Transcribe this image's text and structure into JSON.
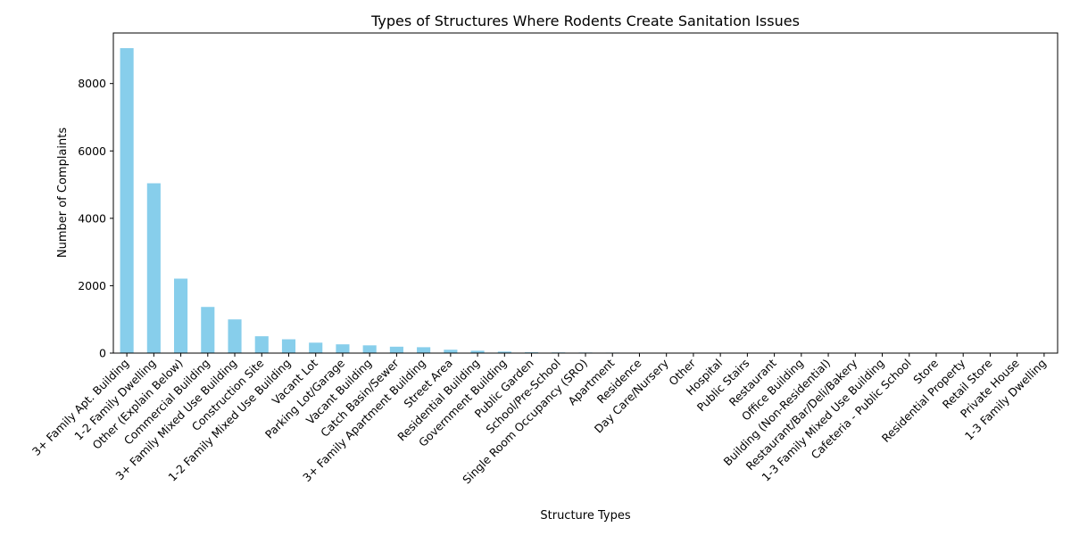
{
  "chart_data": {
    "type": "bar",
    "title": "Types of Structures Where Rodents Create Sanitation Issues",
    "xlabel": "Structure Types",
    "ylabel": "Number of Complaints",
    "ylim": [
      0,
      9500
    ],
    "yticks": [
      0,
      2000,
      4000,
      6000,
      8000
    ],
    "grid": false,
    "bar_color": "#87ceeb",
    "categories": [
      "3+ Family Apt. Building",
      "1-2 Family Dwelling",
      "Other (Explain Below)",
      "Commercial Building",
      "3+ Family Mixed Use Building",
      "Construction Site",
      "1-2 Family Mixed Use Building",
      "Vacant Lot",
      "Parking Lot/Garage",
      "Vacant Building",
      "Catch Basin/Sewer",
      "3+ Family Apartment Building",
      "Street Area",
      "Residential Building",
      "Government Building",
      "Public Garden",
      "School/Pre-School",
      "Single Room Occupancy (SRO)",
      "Apartment",
      "Residence",
      "Day Care/Nursery",
      "Other",
      "Hospital",
      "Public Stairs",
      "Restaurant",
      "Office Building",
      "Building (Non-Residential)",
      "Restaurant/Bar/Deli/Bakery",
      "1-3 Family Mixed Use Building",
      "Cafeteria - Public School",
      "Store",
      "Residential Property",
      "Retail Store",
      "Private House",
      "1-3 Family Dwelling"
    ],
    "values": [
      9050,
      5040,
      2210,
      1370,
      1000,
      500,
      410,
      310,
      260,
      230,
      190,
      175,
      100,
      70,
      45,
      25,
      20,
      18,
      15,
      13,
      12,
      11,
      10,
      9,
      8,
      7,
      6,
      4,
      3,
      3,
      2,
      2,
      1,
      1,
      1
    ]
  }
}
